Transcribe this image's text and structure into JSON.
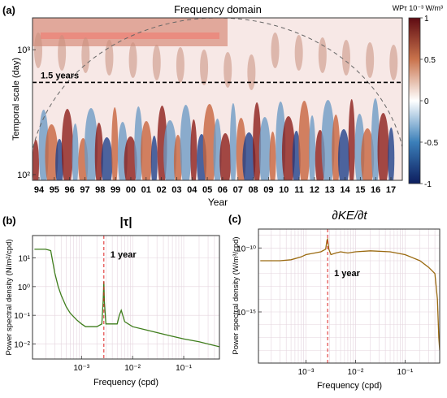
{
  "chart_data": [
    {
      "type": "heatmap",
      "panel_label": "(a)",
      "title": "Frequency domain",
      "xlabel": "Year",
      "ylabel": "Temporal scale (day)",
      "x_ticks": [
        "94",
        "95",
        "96",
        "97",
        "98",
        "99",
        "00",
        "01",
        "02",
        "03",
        "04",
        "05",
        "06",
        "07",
        "08",
        "09",
        "10",
        "11",
        "12",
        "13",
        "14",
        "15",
        "16",
        "17"
      ],
      "y_scale": "log",
      "y_ticks": [
        "10²",
        "10³"
      ],
      "y_tick_values": [
        100,
        1000
      ],
      "ylim": [
        90,
        1800
      ],
      "annotation": "1.5 years",
      "annotation_value": 548,
      "colorbar": {
        "label": "WPτ 10⁻³ W/m³",
        "ticks": [
          "1",
          "0.5",
          "0",
          "-0.5",
          "-1"
        ],
        "tick_values": [
          1,
          0.5,
          0,
          -0.5,
          -1
        ],
        "range": [
          -1,
          1
        ],
        "colors": [
          "#0d1d5e",
          "#3b7fb9",
          "#ffffff",
          "#c9734c",
          "#5e0b12"
        ]
      }
    },
    {
      "type": "line",
      "panel_label": "(b)",
      "title": "|τ|",
      "xlabel": "Frequency (cpd)",
      "ylabel": "Power spectral density (N/m²/cpd)",
      "x_scale": "log",
      "y_scale": "log",
      "xlim": [
        0.00011,
        0.5
      ],
      "ylim": [
        0.003,
        60
      ],
      "x_ticks": [
        "10⁻³",
        "10⁻²",
        "10⁻¹"
      ],
      "x_tick_values": [
        0.001,
        0.01,
        0.1
      ],
      "y_ticks": [
        "10¹",
        "10⁰",
        "10⁻¹",
        "10⁻²"
      ],
      "y_tick_values": [
        10,
        1,
        0.1,
        0.01
      ],
      "annotation": "1 year",
      "annotation_value": 0.00274,
      "x": [
        0.00012,
        0.0002,
        0.00025,
        0.0003,
        0.00035,
        0.0004,
        0.0005,
        0.0006,
        0.0008,
        0.001,
        0.0012,
        0.0015,
        0.002,
        0.0025,
        0.00265,
        0.00274,
        0.0028,
        0.003,
        0.004,
        0.005,
        0.0055,
        0.006,
        0.007,
        0.01,
        0.02,
        0.05,
        0.1,
        0.2,
        0.3,
        0.5
      ],
      "y": [
        20,
        20,
        18,
        3,
        1,
        0.5,
        0.2,
        0.12,
        0.07,
        0.05,
        0.04,
        0.04,
        0.04,
        0.05,
        0.3,
        1.5,
        0.3,
        0.05,
        0.05,
        0.05,
        0.1,
        0.15,
        0.06,
        0.04,
        0.03,
        0.02,
        0.015,
        0.012,
        0.01,
        0.008
      ]
    },
    {
      "type": "line",
      "panel_label": "(c)",
      "title": "∂KE/∂t",
      "xlabel": "Frequency (cpd)",
      "ylabel": "Power spectral density (W/m³/cpd)",
      "x_scale": "log",
      "y_scale": "log",
      "xlim": [
        0.00011,
        0.5
      ],
      "ylim": [
        1e-19,
        3e-09
      ],
      "x_ticks": [
        "10⁻³",
        "10⁻²",
        "10⁻¹"
      ],
      "x_tick_values": [
        0.001,
        0.01,
        0.1
      ],
      "y_ticks": [
        "10⁻¹⁰",
        "10⁻¹⁵"
      ],
      "y_tick_values": [
        1e-10,
        1e-15
      ],
      "annotation": "1 year",
      "annotation_value": 0.00274,
      "x": [
        0.00012,
        0.0002,
        0.0003,
        0.0005,
        0.0008,
        0.001,
        0.0015,
        0.002,
        0.0025,
        0.00265,
        0.00274,
        0.0029,
        0.0032,
        0.004,
        0.005,
        0.007,
        0.01,
        0.02,
        0.05,
        0.1,
        0.2,
        0.3,
        0.4,
        0.45,
        0.48,
        0.5
      ],
      "y": [
        1e-11,
        1e-11,
        1e-11,
        1.2e-11,
        2e-11,
        3e-11,
        4e-11,
        5e-11,
        8e-11,
        4e-10,
        5e-10,
        8e-11,
        3e-11,
        4e-11,
        5e-11,
        4e-11,
        5e-11,
        6e-11,
        5e-11,
        3e-11,
        1e-11,
        3e-12,
        1e-12,
        1e-14,
        1e-17,
        1e-18
      ]
    }
  ]
}
